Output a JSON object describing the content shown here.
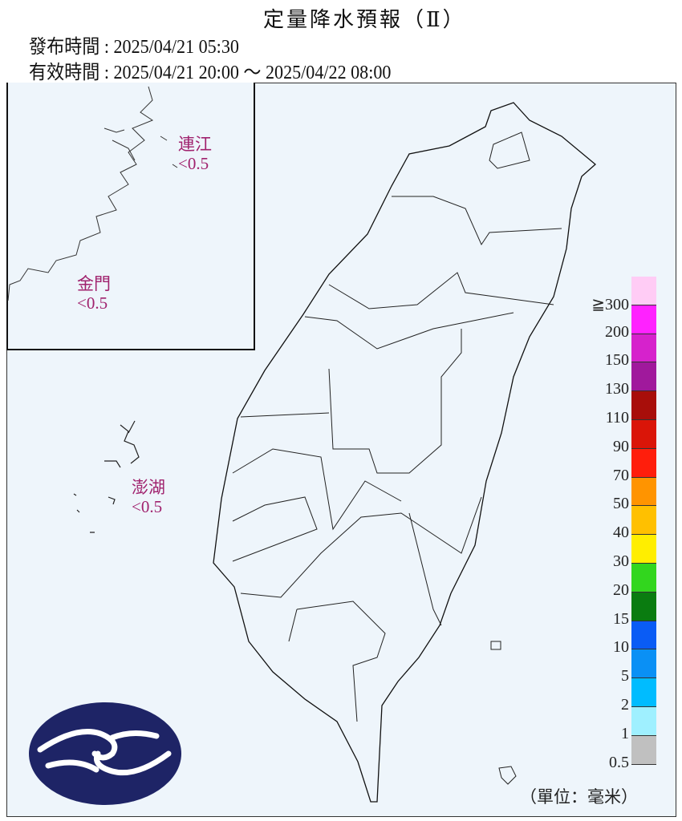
{
  "header": {
    "title": "定量降水預報（Ⅱ）",
    "issue_line": "發布時間 : 2025/04/21 05:30",
    "valid_line": "有效時間 : 2025/04/21 20:00 ～ 2025/04/22 08:00"
  },
  "regions": [
    {
      "name": "連江",
      "value": "<0.5"
    },
    {
      "name": "金門",
      "value": "<0.5"
    },
    {
      "name": "澎湖",
      "value": "<0.5"
    }
  ],
  "legend": {
    "unit": "（單位：毫米）",
    "items": [
      {
        "label": "≧300",
        "color": "#ffccf5"
      },
      {
        "label": "200",
        "color": "#ff22ff"
      },
      {
        "label": "150",
        "color": "#d622cc"
      },
      {
        "label": "130",
        "color": "#a0199c"
      },
      {
        "label": "110",
        "color": "#a80e0a"
      },
      {
        "label": "90",
        "color": "#da1508"
      },
      {
        "label": "70",
        "color": "#ff1e0c"
      },
      {
        "label": "50",
        "color": "#ff9400"
      },
      {
        "label": "40",
        "color": "#ffc000"
      },
      {
        "label": "30",
        "color": "#ffee00"
      },
      {
        "label": "20",
        "color": "#32d61e"
      },
      {
        "label": "15",
        "color": "#0a7c10"
      },
      {
        "label": "10",
        "color": "#0a5cf5"
      },
      {
        "label": "5",
        "color": "#0a90f5"
      },
      {
        "label": "2",
        "color": "#00bcff"
      },
      {
        "label": "1",
        "color": "#9ff0ff"
      },
      {
        "label": "0.5",
        "color": "#c0c0c0"
      }
    ]
  },
  "logo": {
    "color": "#1e2466"
  }
}
